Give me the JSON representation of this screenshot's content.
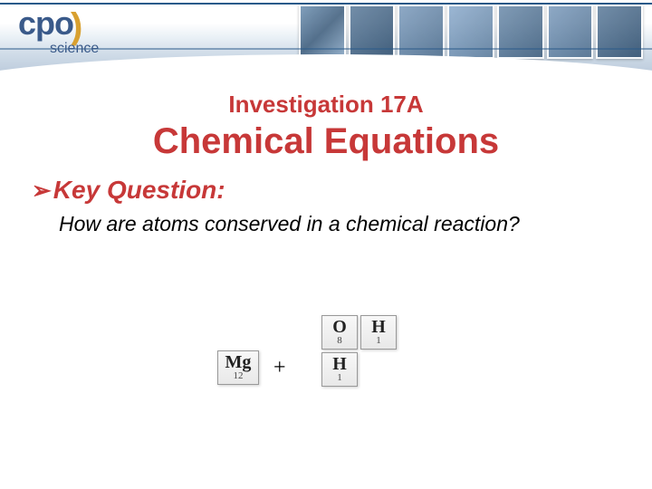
{
  "header": {
    "logo_main": "cpo",
    "logo_sub": "science"
  },
  "slide": {
    "investigation": "Investigation 17A",
    "title": "Chemical Equations",
    "bullet_glyph": "➢",
    "key_question_label": "Key Question:",
    "question": "How are atoms conserved in a chemical reaction?"
  },
  "diagram": {
    "elements": {
      "mg": {
        "symbol": "Mg",
        "number": "12"
      },
      "o": {
        "symbol": "O",
        "number": "8"
      },
      "h1": {
        "symbol": "H",
        "number": "1"
      },
      "h2": {
        "symbol": "H",
        "number": "1"
      }
    },
    "plus": "+"
  },
  "colors": {
    "title_red": "#c73838",
    "banner_blue": "#3a5a8a",
    "logo_gold": "#d8a030",
    "tile_bg": "#f0f0f0",
    "tile_border": "#999999",
    "text_black": "#000000"
  },
  "typography": {
    "investigation_size": 26,
    "title_size": 40,
    "key_question_size": 28,
    "question_size": 23,
    "element_symbol_size": 20,
    "element_number_size": 11
  }
}
